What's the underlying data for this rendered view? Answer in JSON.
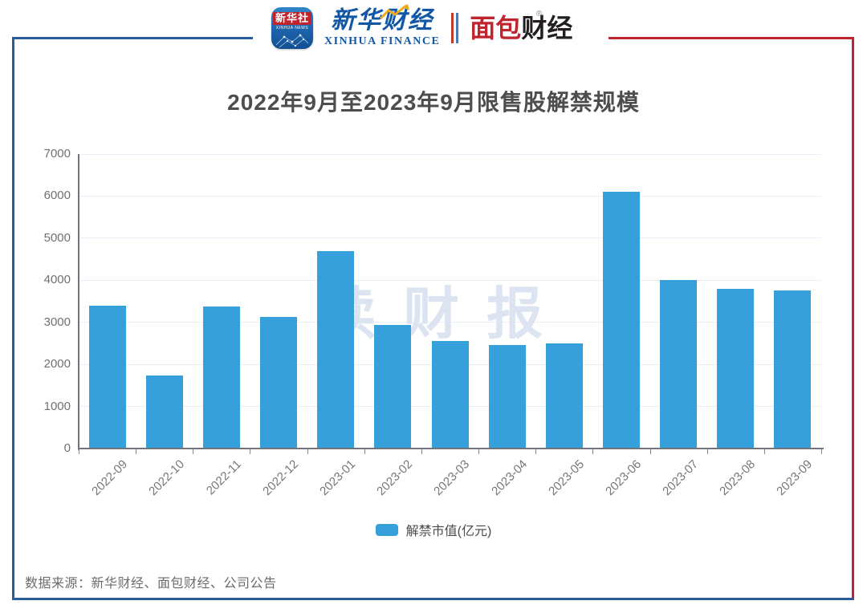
{
  "header": {
    "app_icon": {
      "line1": "新华社",
      "line2": "XINHUA NEWS"
    },
    "xinhua_finance": {
      "cn": "新华财经",
      "en": "XINHUA FINANCE"
    },
    "bread_finance": {
      "cn_red": "面包",
      "cn_dark": "财经",
      "reg_mark": "®"
    }
  },
  "title": "2022年9月至2023年9月限售股解禁规模",
  "watermark": "读财报",
  "legend": {
    "label": "解禁市值(亿元)"
  },
  "footer": {
    "source": "数据来源：新华财经、面包财经、公司公告"
  },
  "colors": {
    "bar": "#36a0da",
    "frame_blue": "#2a5b9e",
    "frame_red": "#c0242e",
    "gridline": "#e9eef8",
    "axis": "#71747c",
    "title_text": "#4d4d4d",
    "watermark_text": "#dce4f1"
  },
  "chart_data": {
    "type": "bar",
    "title": "2022年9月至2023年9月限售股解禁规模",
    "categories": [
      "2022-09",
      "2022-10",
      "2022-11",
      "2022-12",
      "2023-01",
      "2023-02",
      "2023-03",
      "2023-04",
      "2023-05",
      "2023-06",
      "2023-07",
      "2023-08",
      "2023-09"
    ],
    "series": [
      {
        "name": "解禁市值(亿元)",
        "values": [
          3400,
          1730,
          3380,
          3120,
          4700,
          2940,
          2550,
          2460,
          2500,
          6100,
          4000,
          3790,
          3760
        ]
      }
    ],
    "xlabel": "",
    "ylabel": "",
    "ylim": [
      0,
      7000
    ],
    "yticks": [
      0,
      1000,
      2000,
      3000,
      4000,
      5000,
      6000,
      7000
    ],
    "grid": true,
    "legend_position": "bottom",
    "bar_color": "#36a0da"
  }
}
